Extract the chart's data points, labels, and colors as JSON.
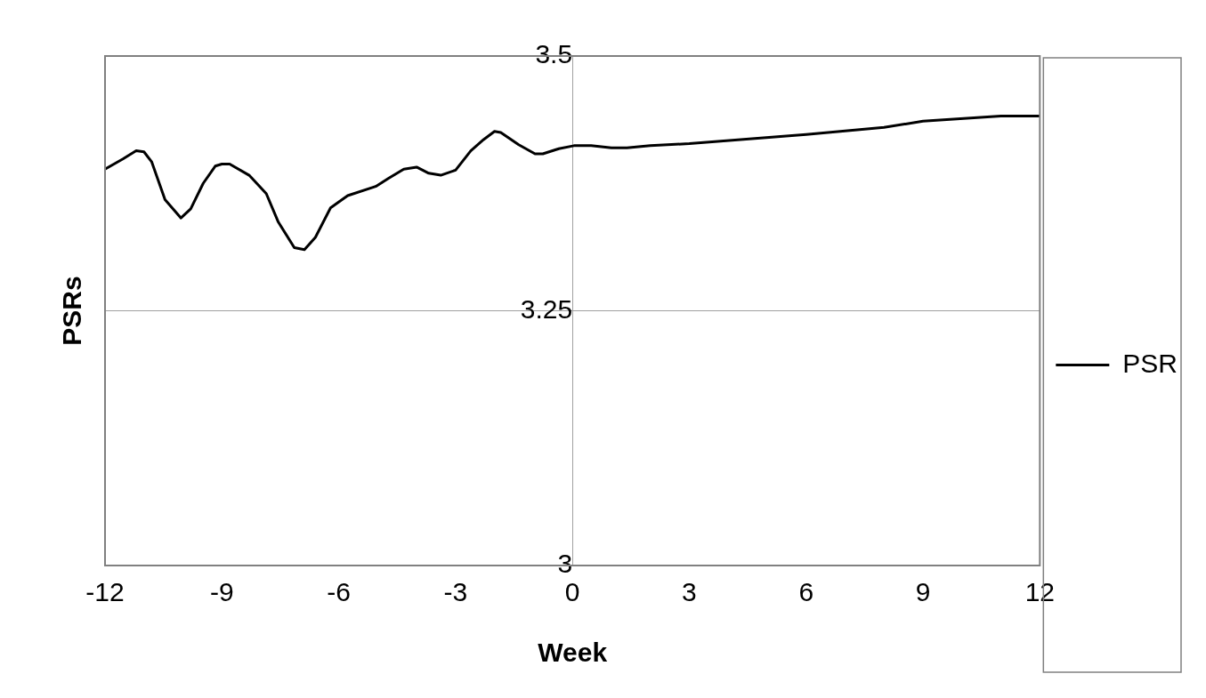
{
  "chart_data": {
    "type": "line",
    "xlabel": "Week",
    "ylabel": "PSRs",
    "xlim": [
      -12,
      12
    ],
    "xticks": [
      -12,
      -9,
      -6,
      -3,
      0,
      3,
      6,
      9,
      12
    ],
    "ylim": [
      3,
      3.5
    ],
    "yticks": [
      3,
      3.25,
      3.5
    ],
    "grid": "y",
    "legend": "right",
    "marker": "none",
    "line_style": "solid",
    "series": [
      {
        "name": "PSR",
        "color": "#000000",
        "x": [
          -12,
          -11.54,
          -11.2,
          -11,
          -10.8,
          -10.46,
          -10.05,
          -9.8,
          -9.48,
          -9.17,
          -9,
          -8.8,
          -8.3,
          -7.86,
          -7.55,
          -7.14,
          -6.88,
          -6.6,
          -6.21,
          -5.77,
          -5.05,
          -4.72,
          -4.33,
          -4,
          -3.69,
          -3.38,
          -3,
          -2.61,
          -2.28,
          -2,
          -1.84,
          -1.38,
          -0.96,
          -0.76,
          -0.35,
          0.04,
          0.48,
          1,
          1.4,
          2,
          3,
          6,
          8,
          9,
          11,
          12
        ],
        "values": [
          3.389,
          3.399,
          3.407,
          3.406,
          3.396,
          3.359,
          3.341,
          3.35,
          3.375,
          3.392,
          3.394,
          3.394,
          3.383,
          3.365,
          3.337,
          3.312,
          3.31,
          3.322,
          3.351,
          3.363,
          3.372,
          3.38,
          3.389,
          3.391,
          3.385,
          3.383,
          3.388,
          3.407,
          3.418,
          3.426,
          3.425,
          3.413,
          3.404,
          3.404,
          3.409,
          3.412,
          3.412,
          3.41,
          3.41,
          3.412,
          3.414,
          3.423,
          3.43,
          3.436,
          3.441,
          3.441
        ]
      }
    ]
  }
}
